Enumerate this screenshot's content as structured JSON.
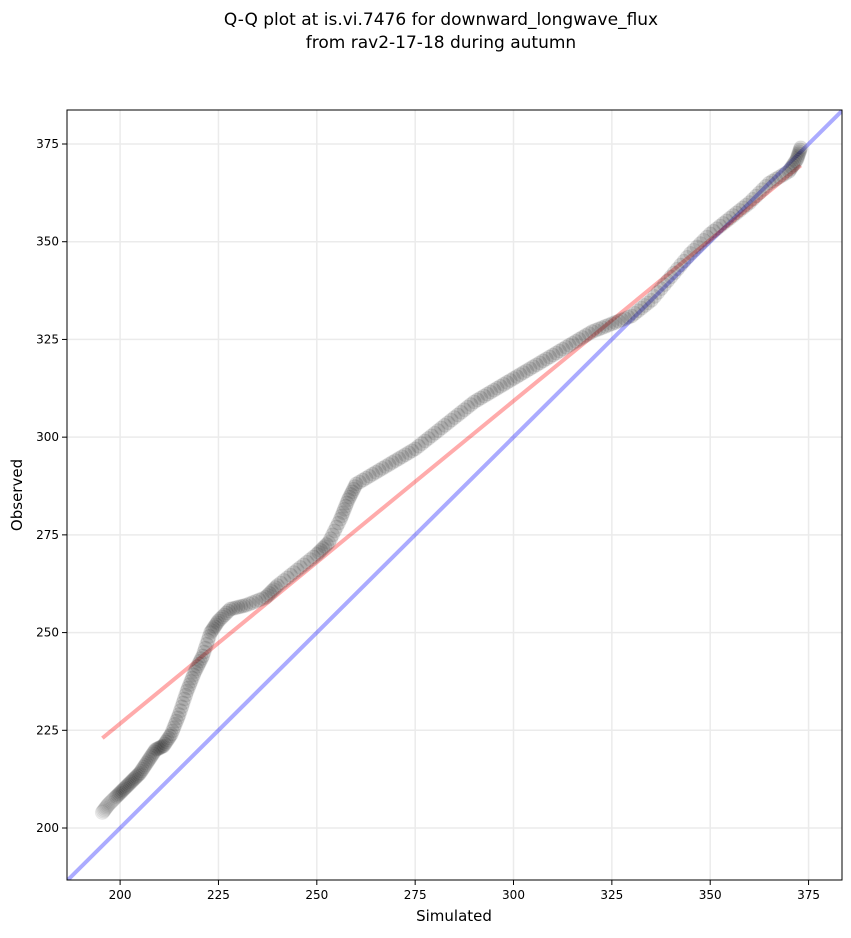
{
  "chart_data": {
    "type": "scatter",
    "title_line1": "Q-Q plot at is.vi.7476 for downward_longwave_flux",
    "title_line2": "from rav2-17-18 during autumn",
    "xlabel": "Simulated",
    "ylabel": "Observed",
    "xlim": [
      186.5,
      383.5
    ],
    "ylim": [
      186.7,
      383.7
    ],
    "grid": true,
    "xticks": [
      200,
      225,
      250,
      275,
      300,
      325,
      350,
      375
    ],
    "yticks": [
      200,
      225,
      250,
      275,
      300,
      325,
      350,
      375
    ],
    "fit_line": {
      "color": "#ff0000",
      "alpha": 0.33,
      "x": [
        195.5,
        373
      ],
      "y": [
        223,
        369.5
      ]
    },
    "identity_line": {
      "color": "#0000ff",
      "alpha": 0.33
    },
    "points": [
      [
        195.5,
        204
      ],
      [
        197,
        206
      ],
      [
        199,
        208
      ],
      [
        201,
        210
      ],
      [
        203,
        212
      ],
      [
        205,
        214
      ],
      [
        207,
        217
      ],
      [
        209,
        220
      ],
      [
        211,
        221
      ],
      [
        213,
        224
      ],
      [
        215,
        229
      ],
      [
        217,
        235
      ],
      [
        219,
        240
      ],
      [
        221,
        244
      ],
      [
        223,
        250
      ],
      [
        225,
        253
      ],
      [
        228,
        256
      ],
      [
        232,
        257
      ],
      [
        237,
        259
      ],
      [
        240,
        262
      ],
      [
        245,
        266
      ],
      [
        250,
        270
      ],
      [
        253,
        273
      ],
      [
        256,
        279
      ],
      [
        258,
        284
      ],
      [
        260,
        288
      ],
      [
        265,
        291
      ],
      [
        270,
        294
      ],
      [
        275,
        297
      ],
      [
        280,
        301
      ],
      [
        285,
        305
      ],
      [
        290,
        309
      ],
      [
        295,
        312
      ],
      [
        300,
        315
      ],
      [
        305,
        318
      ],
      [
        310,
        321
      ],
      [
        315,
        324
      ],
      [
        320,
        327
      ],
      [
        325,
        329
      ],
      [
        330,
        331
      ],
      [
        335,
        335
      ],
      [
        340,
        341
      ],
      [
        345,
        347
      ],
      [
        350,
        352
      ],
      [
        355,
        356
      ],
      [
        360,
        360
      ],
      [
        365,
        365
      ],
      [
        370,
        368
      ],
      [
        372,
        371
      ],
      [
        373,
        374
      ]
    ]
  }
}
